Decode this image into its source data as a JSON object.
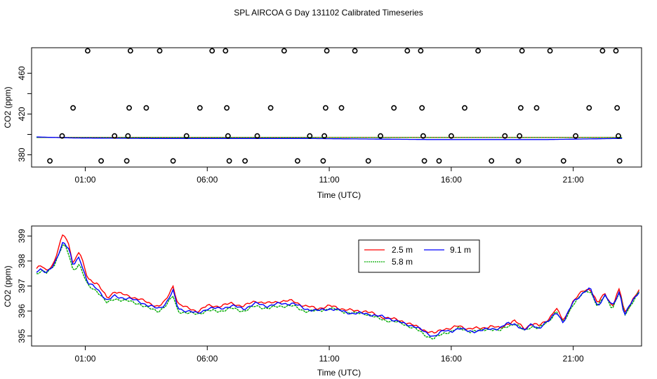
{
  "title": "SPL AIRCOA G  Day 131102  Calibrated Timeseries",
  "chart_data": [
    {
      "type": "scatter",
      "ylabel": "CO2 (ppm)",
      "xlabel": "Time (UTC)",
      "xlim": [
        -1.2,
        23.8
      ],
      "ylim": [
        368,
        485
      ],
      "xticks": [
        1,
        6,
        11,
        16,
        21
      ],
      "xtick_labels": [
        "01:00",
        "06:00",
        "11:00",
        "16:00",
        "21:00"
      ],
      "yticks": [
        380,
        420,
        460
      ],
      "yticks_minor": [
        400,
        440
      ],
      "ytick_labels": [
        "380",
        "420",
        "460"
      ],
      "points": [
        [
          0.05,
          398.5
        ],
        [
          -0.45,
          374
        ],
        [
          0.5,
          426
        ],
        [
          1.1,
          482
        ],
        [
          1.65,
          374
        ],
        [
          2.2,
          398.5
        ],
        [
          2.7,
          374
        ],
        [
          2.75,
          398.5
        ],
        [
          2.8,
          426
        ],
        [
          2.85,
          482
        ],
        [
          3.5,
          426
        ],
        [
          4.05,
          482
        ],
        [
          4.6,
          374
        ],
        [
          5.15,
          398.5
        ],
        [
          5.7,
          426
        ],
        [
          6.2,
          482
        ],
        [
          6.75,
          482
        ],
        [
          6.8,
          426
        ],
        [
          6.85,
          398.5
        ],
        [
          6.9,
          374
        ],
        [
          7.55,
          374
        ],
        [
          8.05,
          398.5
        ],
        [
          8.6,
          426
        ],
        [
          9.15,
          482
        ],
        [
          9.7,
          374
        ],
        [
          10.2,
          398.5
        ],
        [
          10.75,
          374
        ],
        [
          10.8,
          398.5
        ],
        [
          10.85,
          426
        ],
        [
          10.9,
          482
        ],
        [
          11.5,
          426
        ],
        [
          12.05,
          482
        ],
        [
          12.6,
          374
        ],
        [
          13.1,
          398.5
        ],
        [
          13.65,
          426
        ],
        [
          14.2,
          482
        ],
        [
          14.75,
          482
        ],
        [
          14.8,
          426
        ],
        [
          14.85,
          398.5
        ],
        [
          14.9,
          374
        ],
        [
          15.5,
          374
        ],
        [
          16.0,
          398.5
        ],
        [
          16.55,
          426
        ],
        [
          17.1,
          482
        ],
        [
          17.65,
          374
        ],
        [
          18.2,
          398.5
        ],
        [
          18.75,
          374
        ],
        [
          18.8,
          398.5
        ],
        [
          18.85,
          426
        ],
        [
          18.9,
          482
        ],
        [
          19.5,
          426
        ],
        [
          20.05,
          482
        ],
        [
          20.6,
          374
        ],
        [
          21.1,
          398.5
        ],
        [
          21.65,
          426
        ],
        [
          22.2,
          482
        ],
        [
          22.75,
          482
        ],
        [
          22.8,
          426
        ],
        [
          22.85,
          398.5
        ],
        [
          22.9,
          374
        ]
      ],
      "series": [
        {
          "color": "#ff0000",
          "anchors": [
            [
              -1.0,
              397
            ]
          ]
        },
        {
          "color": "#00aa00",
          "anchors": [
            [
              -1.0,
              397
            ]
          ]
        },
        {
          "color": "#0000ff",
          "anchors": [
            [
              -1.0,
              397.5
            ],
            [
              0.5,
              396.5
            ],
            [
              4.0,
              396
            ],
            [
              10.0,
              396
            ],
            [
              15.0,
              395
            ],
            [
              20.0,
              395
            ],
            [
              22.8,
              396
            ]
          ]
        }
      ]
    },
    {
      "type": "line",
      "ylabel": "CO2 (ppm)",
      "xlabel": "Time (UTC)",
      "xlim": [
        -1.2,
        23.8
      ],
      "ylim": [
        394.6,
        399.4
      ],
      "xticks": [
        1,
        6,
        11,
        16,
        21
      ],
      "xtick_labels": [
        "01:00",
        "06:00",
        "11:00",
        "16:00",
        "21:00"
      ],
      "yticks": [
        395,
        396,
        397,
        398,
        399
      ],
      "ytick_labels": [
        "395",
        "396",
        "397",
        "398",
        "399"
      ],
      "legend": "top-center",
      "series": [
        {
          "name": "2.5 m",
          "color": "#ff0000",
          "anchors": [
            [
              -1.0,
              397.7
            ],
            [
              -0.8,
              397.8
            ],
            [
              -0.6,
              397.6
            ],
            [
              -0.3,
              397.9
            ],
            [
              0.1,
              399.1
            ],
            [
              0.35,
              398.6
            ],
            [
              0.5,
              397.9
            ],
            [
              0.75,
              398.4
            ],
            [
              1.1,
              397.3
            ],
            [
              1.5,
              397.1
            ],
            [
              1.9,
              396.5
            ],
            [
              2.2,
              396.8
            ],
            [
              2.7,
              396.6
            ],
            [
              3.2,
              396.5
            ],
            [
              3.6,
              396.3
            ],
            [
              4.0,
              396.2
            ],
            [
              4.3,
              396.4
            ],
            [
              4.6,
              397.0
            ],
            [
              4.8,
              396.3
            ],
            [
              5.2,
              396.1
            ],
            [
              5.6,
              396.0
            ],
            [
              6.0,
              396.2
            ],
            [
              6.5,
              396.2
            ],
            [
              7.0,
              396.3
            ],
            [
              7.5,
              396.2
            ],
            [
              8.0,
              396.4
            ],
            [
              8.5,
              396.3
            ],
            [
              9.0,
              396.4
            ],
            [
              9.5,
              396.4
            ],
            [
              10.0,
              396.2
            ],
            [
              10.5,
              396.1
            ],
            [
              11.0,
              396.2
            ],
            [
              11.5,
              396.1
            ],
            [
              12.0,
              396.0
            ],
            [
              12.5,
              396.0
            ],
            [
              13.0,
              395.8
            ],
            [
              13.5,
              395.7
            ],
            [
              14.0,
              395.6
            ],
            [
              14.5,
              395.4
            ],
            [
              15.0,
              395.2
            ],
            [
              15.3,
              395.1
            ],
            [
              15.7,
              395.3
            ],
            [
              16.0,
              395.3
            ],
            [
              16.3,
              395.4
            ],
            [
              16.7,
              395.3
            ],
            [
              17.2,
              395.3
            ],
            [
              17.6,
              395.4
            ],
            [
              18.0,
              395.3
            ],
            [
              18.3,
              395.5
            ],
            [
              18.6,
              395.6
            ],
            [
              19.0,
              395.3
            ],
            [
              19.3,
              395.5
            ],
            [
              19.6,
              395.4
            ],
            [
              20.0,
              395.7
            ],
            [
              20.3,
              396.1
            ],
            [
              20.6,
              395.6
            ],
            [
              21.0,
              396.4
            ],
            [
              21.4,
              396.8
            ],
            [
              21.7,
              396.9
            ],
            [
              22.0,
              396.3
            ],
            [
              22.3,
              396.7
            ],
            [
              22.6,
              396.2
            ],
            [
              22.9,
              396.9
            ],
            [
              23.1,
              395.9
            ],
            [
              23.3,
              396.2
            ],
            [
              23.5,
              396.6
            ],
            [
              23.7,
              396.8
            ]
          ]
        },
        {
          "name": "5.8 m",
          "color": "#00aa00",
          "anchors": [
            [
              -1.0,
              397.5
            ],
            [
              -0.8,
              397.6
            ],
            [
              -0.6,
              397.5
            ],
            [
              -0.3,
              397.8
            ],
            [
              0.1,
              398.7
            ],
            [
              0.35,
              398.2
            ],
            [
              0.5,
              397.6
            ],
            [
              0.75,
              397.9
            ],
            [
              1.1,
              397.0
            ],
            [
              1.5,
              396.8
            ],
            [
              1.9,
              396.3
            ],
            [
              2.2,
              396.5
            ],
            [
              2.7,
              396.4
            ],
            [
              3.2,
              396.3
            ],
            [
              3.6,
              396.1
            ],
            [
              4.0,
              396.0
            ],
            [
              4.3,
              396.2
            ],
            [
              4.6,
              396.6
            ],
            [
              4.8,
              396.0
            ],
            [
              5.2,
              395.9
            ],
            [
              5.6,
              395.9
            ],
            [
              6.0,
              396.0
            ],
            [
              6.5,
              396.0
            ],
            [
              7.0,
              396.1
            ],
            [
              7.5,
              396.0
            ],
            [
              8.0,
              396.2
            ],
            [
              8.5,
              396.1
            ],
            [
              9.0,
              396.2
            ],
            [
              9.5,
              396.2
            ],
            [
              10.0,
              396.0
            ],
            [
              10.5,
              396.0
            ],
            [
              11.0,
              396.1
            ],
            [
              11.5,
              396.0
            ],
            [
              12.0,
              395.9
            ],
            [
              12.5,
              395.9
            ],
            [
              13.0,
              395.7
            ],
            [
              13.5,
              395.6
            ],
            [
              14.0,
              395.5
            ],
            [
              14.5,
              395.3
            ],
            [
              15.0,
              395.0
            ],
            [
              15.3,
              394.9
            ],
            [
              15.7,
              395.1
            ],
            [
              16.0,
              395.2
            ],
            [
              16.3,
              395.3
            ],
            [
              16.7,
              395.2
            ],
            [
              17.2,
              395.2
            ],
            [
              17.6,
              395.3
            ],
            [
              18.0,
              395.2
            ],
            [
              18.3,
              395.4
            ],
            [
              18.6,
              395.5
            ],
            [
              19.0,
              395.2
            ],
            [
              19.3,
              395.4
            ],
            [
              19.6,
              395.3
            ],
            [
              20.0,
              395.6
            ],
            [
              20.3,
              396.0
            ],
            [
              20.6,
              395.5
            ],
            [
              21.0,
              396.3
            ],
            [
              21.4,
              396.7
            ],
            [
              21.7,
              396.8
            ],
            [
              22.0,
              396.2
            ],
            [
              22.3,
              396.6
            ],
            [
              22.6,
              396.1
            ],
            [
              22.9,
              396.8
            ],
            [
              23.1,
              395.8
            ],
            [
              23.3,
              396.1
            ],
            [
              23.5,
              396.5
            ],
            [
              23.7,
              396.8
            ]
          ]
        },
        {
          "name": "9.1 m",
          "color": "#0000ff",
          "anchors": [
            [
              -1.0,
              397.6
            ],
            [
              -0.8,
              397.7
            ],
            [
              -0.6,
              397.5
            ],
            [
              -0.3,
              397.8
            ],
            [
              0.1,
              398.8
            ],
            [
              0.35,
              398.4
            ],
            [
              0.5,
              397.8
            ],
            [
              0.75,
              398.2
            ],
            [
              1.1,
              397.1
            ],
            [
              1.5,
              396.9
            ],
            [
              1.9,
              396.4
            ],
            [
              2.2,
              396.6
            ],
            [
              2.7,
              396.5
            ],
            [
              3.2,
              396.4
            ],
            [
              3.6,
              396.2
            ],
            [
              4.0,
              396.1
            ],
            [
              4.3,
              396.3
            ],
            [
              4.6,
              396.8
            ],
            [
              4.8,
              396.1
            ],
            [
              5.2,
              396.0
            ],
            [
              5.6,
              395.9
            ],
            [
              6.0,
              396.1
            ],
            [
              6.5,
              396.1
            ],
            [
              7.0,
              396.2
            ],
            [
              7.5,
              396.1
            ],
            [
              8.0,
              396.3
            ],
            [
              8.5,
              396.2
            ],
            [
              9.0,
              396.3
            ],
            [
              9.5,
              396.3
            ],
            [
              10.0,
              396.1
            ],
            [
              10.5,
              396.0
            ],
            [
              11.0,
              396.1
            ],
            [
              11.5,
              396.0
            ],
            [
              12.0,
              395.9
            ],
            [
              12.5,
              395.9
            ],
            [
              13.0,
              395.8
            ],
            [
              13.5,
              395.7
            ],
            [
              14.0,
              395.5
            ],
            [
              14.5,
              395.4
            ],
            [
              15.0,
              395.1
            ],
            [
              15.3,
              395.0
            ],
            [
              15.7,
              395.2
            ],
            [
              16.0,
              395.2
            ],
            [
              16.3,
              395.3
            ],
            [
              16.7,
              395.2
            ],
            [
              17.2,
              395.2
            ],
            [
              17.6,
              395.3
            ],
            [
              18.0,
              395.3
            ],
            [
              18.3,
              395.5
            ],
            [
              18.6,
              395.5
            ],
            [
              19.0,
              395.2
            ],
            [
              19.3,
              395.5
            ],
            [
              19.6,
              395.3
            ],
            [
              20.0,
              395.6
            ],
            [
              20.3,
              396.0
            ],
            [
              20.6,
              395.5
            ],
            [
              21.0,
              396.4
            ],
            [
              21.4,
              396.7
            ],
            [
              21.7,
              396.9
            ],
            [
              22.0,
              396.2
            ],
            [
              22.3,
              396.6
            ],
            [
              22.6,
              396.2
            ],
            [
              22.9,
              396.8
            ],
            [
              23.1,
              395.8
            ],
            [
              23.3,
              396.2
            ],
            [
              23.5,
              396.5
            ],
            [
              23.7,
              396.8
            ]
          ]
        }
      ]
    }
  ]
}
